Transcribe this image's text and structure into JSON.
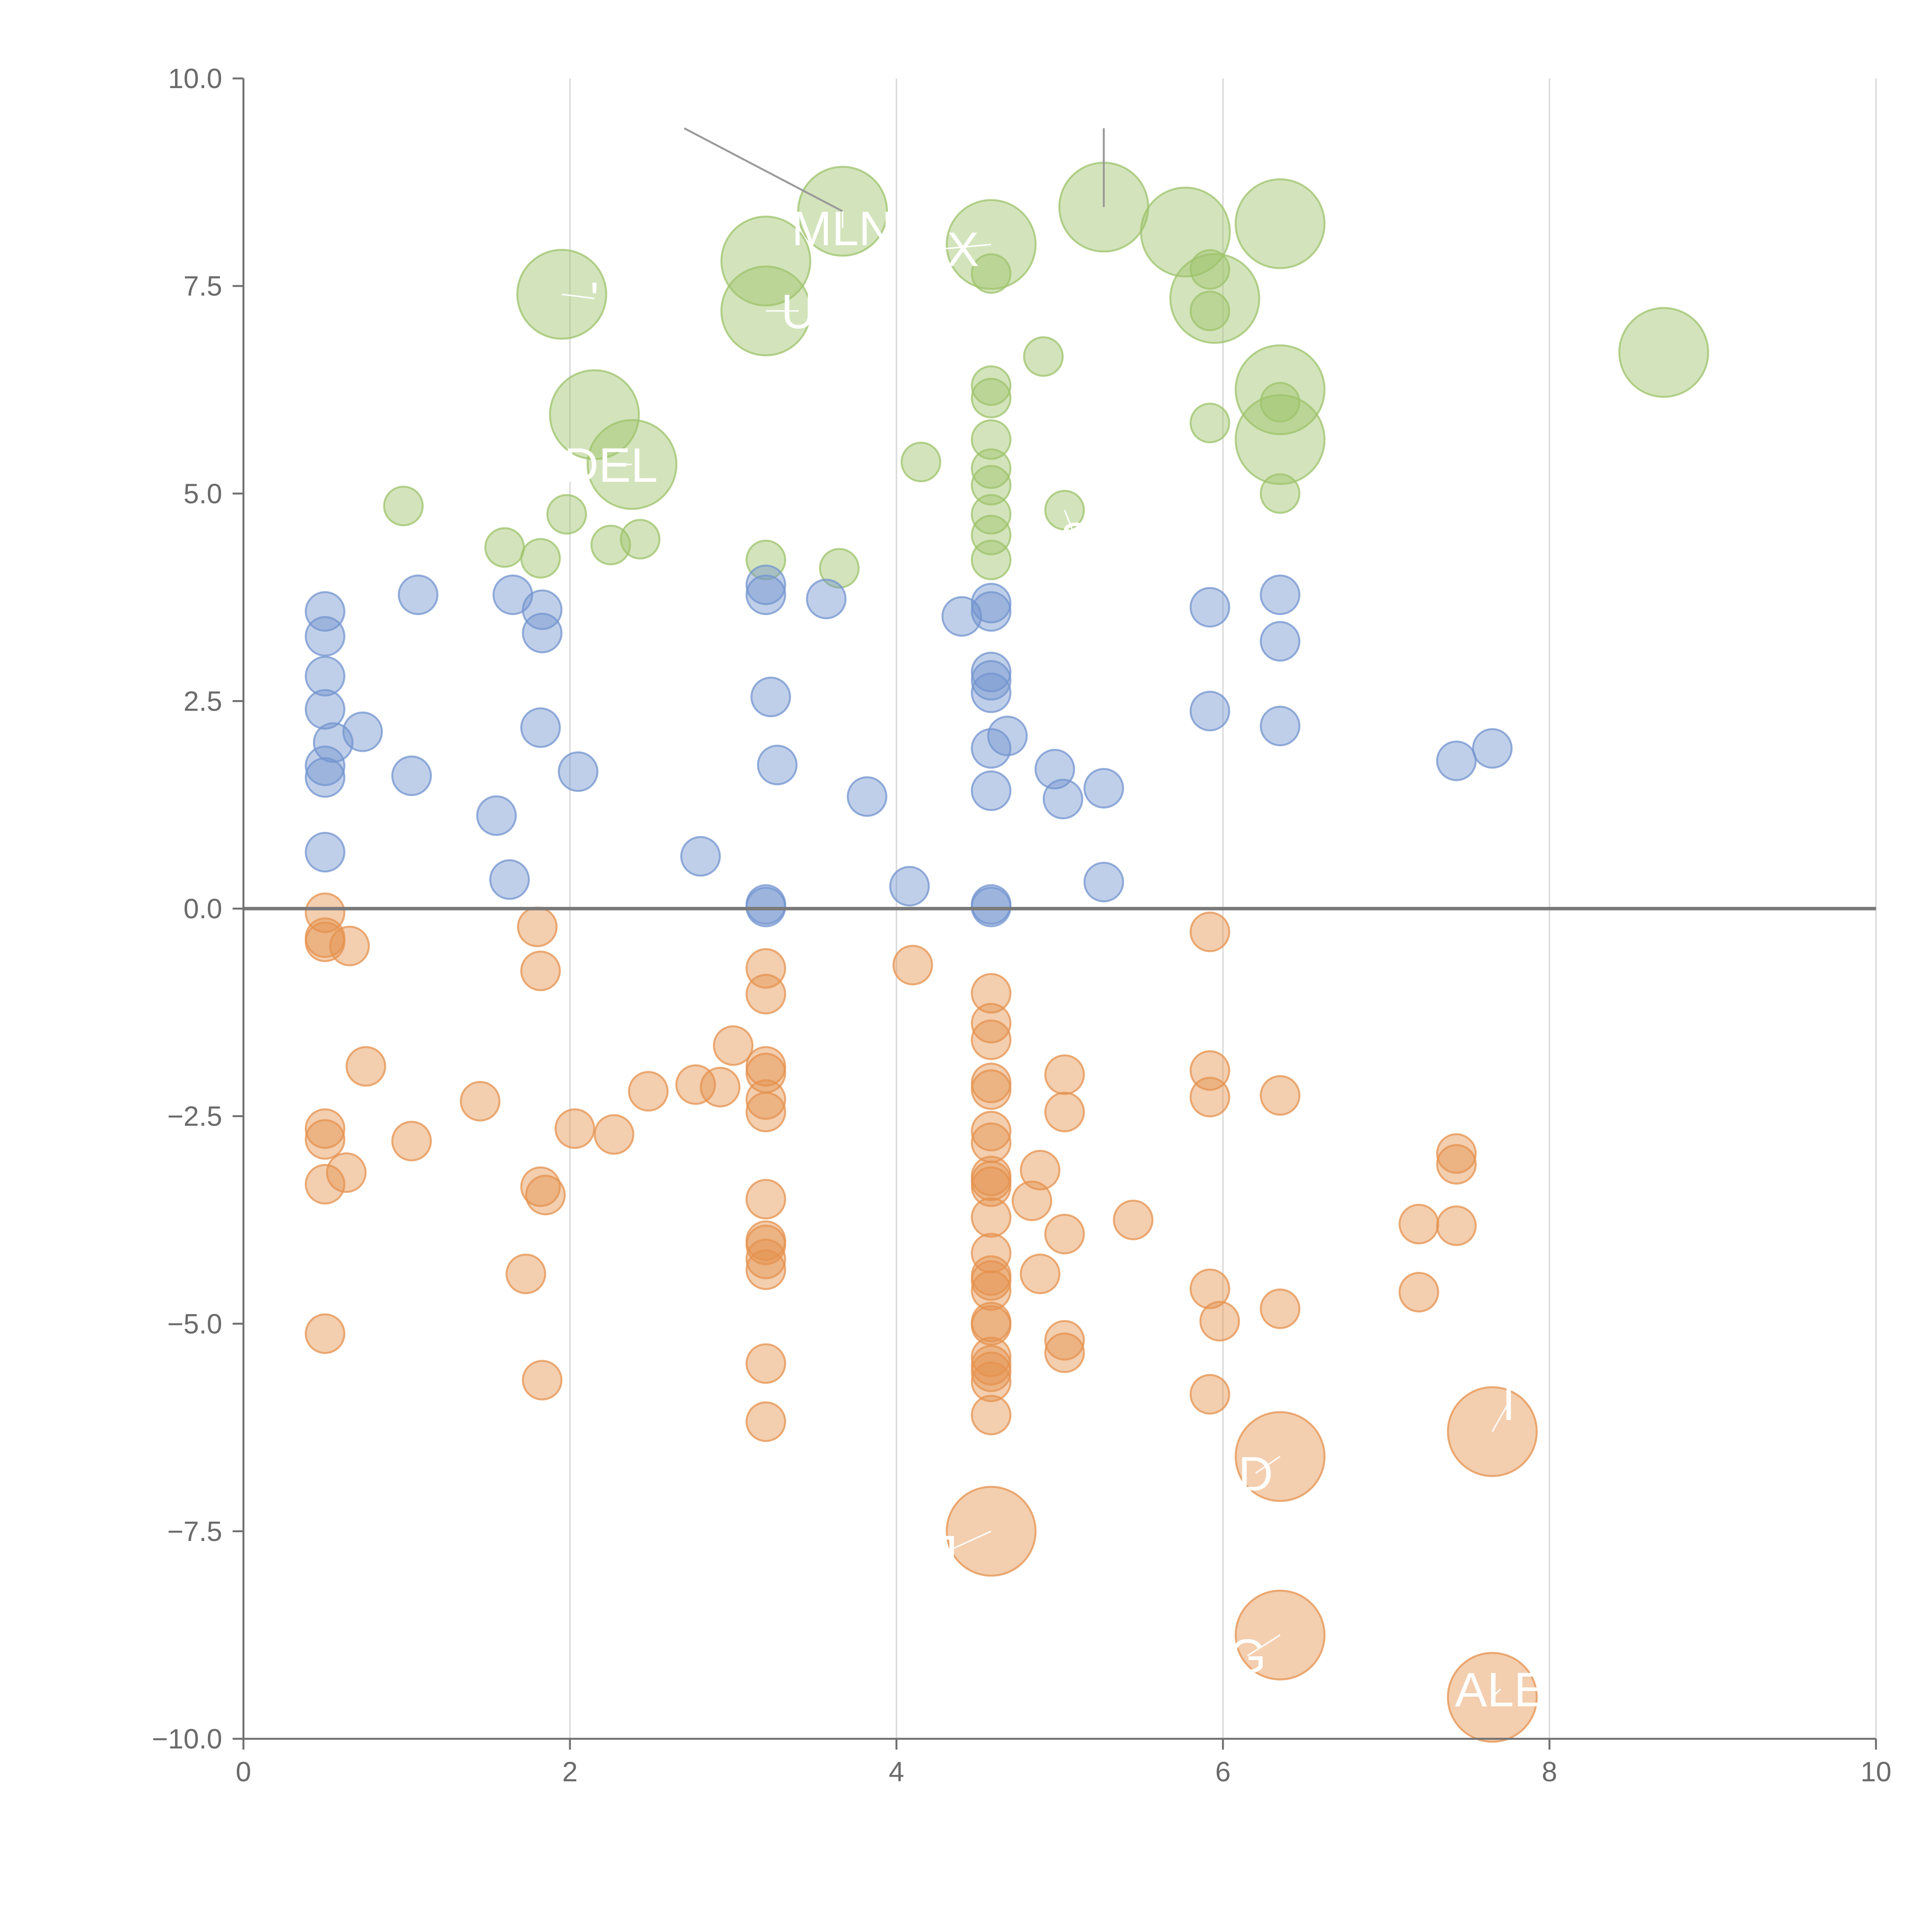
{
  "chart_data": {
    "type": "scatter",
    "title": "",
    "xlabel": "",
    "ylabel": "",
    "xlim": [
      0,
      10
    ],
    "ylim": [
      -10,
      10
    ],
    "x_ticks": [
      0,
      2,
      4,
      6,
      8,
      10
    ],
    "x_tick_labels": [
      "0",
      "2",
      "4",
      "6",
      "8",
      "10"
    ],
    "y_ticks": [
      -10,
      -7.5,
      -5,
      -2.5,
      0,
      2.5,
      5,
      7.5,
      10
    ],
    "y_tick_labels": [
      "−10.0",
      "−7.5",
      "−5.0",
      "−2.5",
      "0.0",
      "2.5",
      "5.0",
      "7.5",
      "10.0"
    ],
    "vertical_grid": true,
    "horizontal_grid": false,
    "zero_line": true,
    "colors": {
      "green": "#9dc36b",
      "blue": "#7394cf",
      "orange": "#e5924d",
      "axis": "#707070",
      "grid": "#dcdcdc",
      "zero_line": "#7a7a7a",
      "label_text": "#ffffff"
    },
    "series": [
      {
        "name": "green",
        "color": "#9dc36b",
        "points": [
          {
            "x": 1.95,
            "y": 7.4,
            "size": "large"
          },
          {
            "x": 3.2,
            "y": 7.8,
            "size": "large"
          },
          {
            "x": 3.2,
            "y": 7.2,
            "size": "large"
          },
          {
            "x": 3.67,
            "y": 8.4,
            "size": "large"
          },
          {
            "x": 4.58,
            "y": 8.0,
            "size": "large"
          },
          {
            "x": 5.27,
            "y": 8.45,
            "size": "large"
          },
          {
            "x": 5.77,
            "y": 8.15,
            "size": "large"
          },
          {
            "x": 5.95,
            "y": 7.35,
            "size": "large"
          },
          {
            "x": 6.35,
            "y": 8.25,
            "size": "large"
          },
          {
            "x": 2.15,
            "y": 5.95,
            "size": "large"
          },
          {
            "x": 2.38,
            "y": 5.35,
            "size": "large"
          },
          {
            "x": 6.35,
            "y": 6.25,
            "size": "large"
          },
          {
            "x": 6.35,
            "y": 5.65,
            "size": "large"
          },
          {
            "x": 8.7,
            "y": 6.7,
            "size": "large"
          },
          {
            "x": 4.58,
            "y": 7.65,
            "size": "small"
          },
          {
            "x": 5.92,
            "y": 7.7,
            "size": "small"
          },
          {
            "x": 5.92,
            "y": 7.2,
            "size": "small"
          },
          {
            "x": 4.58,
            "y": 6.3,
            "size": "small"
          },
          {
            "x": 4.58,
            "y": 6.15,
            "size": "small"
          },
          {
            "x": 4.9,
            "y": 6.65,
            "size": "small"
          },
          {
            "x": 4.58,
            "y": 5.65,
            "size": "small"
          },
          {
            "x": 4.15,
            "y": 5.38,
            "size": "small"
          },
          {
            "x": 5.92,
            "y": 5.85,
            "size": "small"
          },
          {
            "x": 6.35,
            "y": 6.1,
            "size": "small"
          },
          {
            "x": 4.58,
            "y": 5.3,
            "size": "small"
          },
          {
            "x": 4.58,
            "y": 5.1,
            "size": "small"
          },
          {
            "x": 6.35,
            "y": 5.0,
            "size": "small"
          },
          {
            "x": 0.98,
            "y": 4.85,
            "size": "small"
          },
          {
            "x": 1.98,
            "y": 4.75,
            "size": "small"
          },
          {
            "x": 4.58,
            "y": 4.75,
            "size": "small"
          },
          {
            "x": 5.03,
            "y": 4.8,
            "size": "small"
          },
          {
            "x": 4.58,
            "y": 4.5,
            "size": "small"
          },
          {
            "x": 1.6,
            "y": 4.35,
            "size": "small"
          },
          {
            "x": 2.25,
            "y": 4.38,
            "size": "small"
          },
          {
            "x": 2.43,
            "y": 4.45,
            "size": "small"
          },
          {
            "x": 1.82,
            "y": 4.22,
            "size": "small"
          },
          {
            "x": 3.2,
            "y": 4.2,
            "size": "small"
          },
          {
            "x": 4.58,
            "y": 4.2,
            "size": "small"
          },
          {
            "x": 3.65,
            "y": 4.1,
            "size": "small"
          }
        ]
      },
      {
        "name": "blue",
        "color": "#7394cf",
        "points": [
          {
            "x": 0.5,
            "y": 3.58
          },
          {
            "x": 0.5,
            "y": 3.28
          },
          {
            "x": 0.5,
            "y": 2.8
          },
          {
            "x": 0.5,
            "y": 2.4
          },
          {
            "x": 0.55,
            "y": 2.0
          },
          {
            "x": 0.73,
            "y": 2.13
          },
          {
            "x": 0.5,
            "y": 1.72
          },
          {
            "x": 0.5,
            "y": 1.58
          },
          {
            "x": 0.5,
            "y": 0.68
          },
          {
            "x": 1.07,
            "y": 3.78
          },
          {
            "x": 1.65,
            "y": 3.78
          },
          {
            "x": 1.83,
            "y": 3.6
          },
          {
            "x": 1.83,
            "y": 3.32
          },
          {
            "x": 1.82,
            "y": 2.18
          },
          {
            "x": 2.05,
            "y": 1.65
          },
          {
            "x": 1.03,
            "y": 1.6
          },
          {
            "x": 1.55,
            "y": 1.12
          },
          {
            "x": 1.63,
            "y": 0.35
          },
          {
            "x": 2.8,
            "y": 0.63
          },
          {
            "x": 3.2,
            "y": 3.9
          },
          {
            "x": 3.2,
            "y": 3.78
          },
          {
            "x": 3.57,
            "y": 3.73
          },
          {
            "x": 3.23,
            "y": 2.55
          },
          {
            "x": 3.27,
            "y": 1.73
          },
          {
            "x": 3.82,
            "y": 1.35
          },
          {
            "x": 3.2,
            "y": 0.05
          },
          {
            "x": 3.2,
            "y": 0.02
          },
          {
            "x": 4.08,
            "y": 0.27
          },
          {
            "x": 4.58,
            "y": 3.68
          },
          {
            "x": 4.4,
            "y": 3.52
          },
          {
            "x": 4.58,
            "y": 3.58
          },
          {
            "x": 4.58,
            "y": 2.85
          },
          {
            "x": 4.58,
            "y": 2.75
          },
          {
            "x": 4.58,
            "y": 2.6
          },
          {
            "x": 4.68,
            "y": 2.08
          },
          {
            "x": 4.58,
            "y": 1.93
          },
          {
            "x": 4.97,
            "y": 1.68
          },
          {
            "x": 5.02,
            "y": 1.32
          },
          {
            "x": 5.27,
            "y": 1.45
          },
          {
            "x": 4.58,
            "y": 1.42
          },
          {
            "x": 4.58,
            "y": 0.05
          },
          {
            "x": 4.58,
            "y": 0.02
          },
          {
            "x": 5.27,
            "y": 0.32
          },
          {
            "x": 5.92,
            "y": 3.63
          },
          {
            "x": 5.92,
            "y": 2.38
          },
          {
            "x": 6.35,
            "y": 3.78
          },
          {
            "x": 6.35,
            "y": 3.22
          },
          {
            "x": 6.35,
            "y": 2.2
          },
          {
            "x": 7.43,
            "y": 1.78
          },
          {
            "x": 7.65,
            "y": 1.93
          }
        ]
      },
      {
        "name": "orange",
        "color": "#e5924d",
        "points": [
          {
            "x": 0.5,
            "y": -0.05
          },
          {
            "x": 0.5,
            "y": -0.35
          },
          {
            "x": 0.5,
            "y": -0.4
          },
          {
            "x": 0.65,
            "y": -0.45
          },
          {
            "x": 0.75,
            "y": -1.9
          },
          {
            "x": 0.5,
            "y": -2.65
          },
          {
            "x": 0.5,
            "y": -2.78
          },
          {
            "x": 0.63,
            "y": -3.18
          },
          {
            "x": 0.5,
            "y": -3.32
          },
          {
            "x": 0.5,
            "y": -5.12
          },
          {
            "x": 1.03,
            "y": -2.8
          },
          {
            "x": 1.45,
            "y": -2.32
          },
          {
            "x": 1.8,
            "y": -0.22
          },
          {
            "x": 1.82,
            "y": -0.75
          },
          {
            "x": 1.82,
            "y": -3.35
          },
          {
            "x": 1.85,
            "y": -3.45
          },
          {
            "x": 1.73,
            "y": -4.4
          },
          {
            "x": 1.83,
            "y": -5.68
          },
          {
            "x": 2.03,
            "y": -2.65
          },
          {
            "x": 2.27,
            "y": -2.72
          },
          {
            "x": 2.48,
            "y": -2.2
          },
          {
            "x": 2.77,
            "y": -2.12
          },
          {
            "x": 2.92,
            "y": -2.15
          },
          {
            "x": 3.0,
            "y": -1.65
          },
          {
            "x": 3.2,
            "y": -0.72
          },
          {
            "x": 3.2,
            "y": -1.03
          },
          {
            "x": 3.2,
            "y": -1.9
          },
          {
            "x": 3.2,
            "y": -1.98
          },
          {
            "x": 3.2,
            "y": -2.3
          },
          {
            "x": 3.2,
            "y": -2.45
          },
          {
            "x": 3.2,
            "y": -3.5
          },
          {
            "x": 3.2,
            "y": -4.0
          },
          {
            "x": 3.2,
            "y": -4.05
          },
          {
            "x": 3.2,
            "y": -4.22
          },
          {
            "x": 3.2,
            "y": -4.35
          },
          {
            "x": 3.2,
            "y": -5.48
          },
          {
            "x": 3.2,
            "y": -6.18
          },
          {
            "x": 4.1,
            "y": -0.68
          },
          {
            "x": 4.58,
            "y": -1.02
          },
          {
            "x": 4.58,
            "y": -1.38
          },
          {
            "x": 4.58,
            "y": -1.58
          },
          {
            "x": 4.58,
            "y": -2.1
          },
          {
            "x": 4.58,
            "y": -2.18
          },
          {
            "x": 4.58,
            "y": -2.68
          },
          {
            "x": 4.58,
            "y": -2.82
          },
          {
            "x": 4.58,
            "y": -3.22
          },
          {
            "x": 4.58,
            "y": -3.28
          },
          {
            "x": 4.58,
            "y": -3.35
          },
          {
            "x": 4.58,
            "y": -3.72
          },
          {
            "x": 4.58,
            "y": -4.15
          },
          {
            "x": 4.58,
            "y": -4.42
          },
          {
            "x": 4.58,
            "y": -4.48
          },
          {
            "x": 4.58,
            "y": -4.6
          },
          {
            "x": 4.58,
            "y": -4.98
          },
          {
            "x": 4.58,
            "y": -5.02
          },
          {
            "x": 4.58,
            "y": -5.4
          },
          {
            "x": 4.58,
            "y": -5.5
          },
          {
            "x": 4.58,
            "y": -5.58
          },
          {
            "x": 4.58,
            "y": -5.7
          },
          {
            "x": 4.58,
            "y": -6.1
          },
          {
            "x": 4.88,
            "y": -3.15
          },
          {
            "x": 4.83,
            "y": -3.52
          },
          {
            "x": 4.88,
            "y": -4.4
          },
          {
            "x": 5.03,
            "y": -2.0
          },
          {
            "x": 5.03,
            "y": -2.45
          },
          {
            "x": 5.03,
            "y": -3.92
          },
          {
            "x": 5.03,
            "y": -5.2
          },
          {
            "x": 5.03,
            "y": -5.35
          },
          {
            "x": 5.45,
            "y": -3.75
          },
          {
            "x": 5.92,
            "y": -0.28
          },
          {
            "x": 5.92,
            "y": -1.95
          },
          {
            "x": 5.92,
            "y": -2.27
          },
          {
            "x": 5.92,
            "y": -4.58
          },
          {
            "x": 5.98,
            "y": -4.97
          },
          {
            "x": 5.92,
            "y": -5.85
          },
          {
            "x": 6.35,
            "y": -2.25
          },
          {
            "x": 6.35,
            "y": -4.82
          },
          {
            "x": 7.2,
            "y": -3.8
          },
          {
            "x": 7.2,
            "y": -4.62
          },
          {
            "x": 7.43,
            "y": -2.95
          },
          {
            "x": 7.43,
            "y": -3.08
          },
          {
            "x": 7.43,
            "y": -3.82
          },
          {
            "x": 6.35,
            "y": -6.6,
            "size": "large"
          },
          {
            "x": 7.65,
            "y": -6.3,
            "size": "large"
          },
          {
            "x": 4.58,
            "y": -7.5,
            "size": "large"
          },
          {
            "x": 6.35,
            "y": -8.75,
            "size": "large"
          },
          {
            "x": 7.65,
            "y": -9.5,
            "size": "large"
          }
        ]
      }
    ],
    "annotations": [
      {
        "text": "MLN",
        "x": 3.67,
        "y": 8.4,
        "tx": 3.67,
        "ty": 8.2,
        "leader_from": [
          2.7,
          9.4
        ]
      },
      {
        "text": "CX",
        "x": 4.58,
        "y": 8.0,
        "tx": 4.3,
        "ty": 7.95
      },
      {
        "text": "U",
        "x": 3.2,
        "y": 7.2,
        "tx": 3.4,
        "ty": 7.2
      },
      {
        "text": "DEL",
        "x": 2.38,
        "y": 5.35,
        "tx": 2.25,
        "ty": 5.35
      },
      {
        "text": "'",
        "x": 1.95,
        "y": 7.4,
        "tx": 2.15,
        "ty": 7.35
      },
      {
        "text": "S",
        "x": 5.03,
        "y": 4.8,
        "tx": 5.1,
        "ty": 4.45
      },
      {
        "text": "D",
        "x": 6.35,
        "y": -6.6,
        "tx": 6.2,
        "ty": -6.8
      },
      {
        "text": "I",
        "x": 7.65,
        "y": -6.3,
        "tx": 7.75,
        "ty": -5.95
      },
      {
        "text": "J",
        "x": 4.58,
        "y": -7.5,
        "tx": 4.3,
        "ty": -7.75
      },
      {
        "text": "G",
        "x": 6.35,
        "y": -8.75,
        "tx": 6.15,
        "ty": -9.0
      },
      {
        "text": "ALE",
        "x": 7.65,
        "y": -9.5,
        "tx": 7.7,
        "ty": -9.4
      },
      {
        "text": "",
        "x": 5.27,
        "y": 8.45,
        "leader_from": [
          5.27,
          9.4
        ]
      }
    ]
  }
}
